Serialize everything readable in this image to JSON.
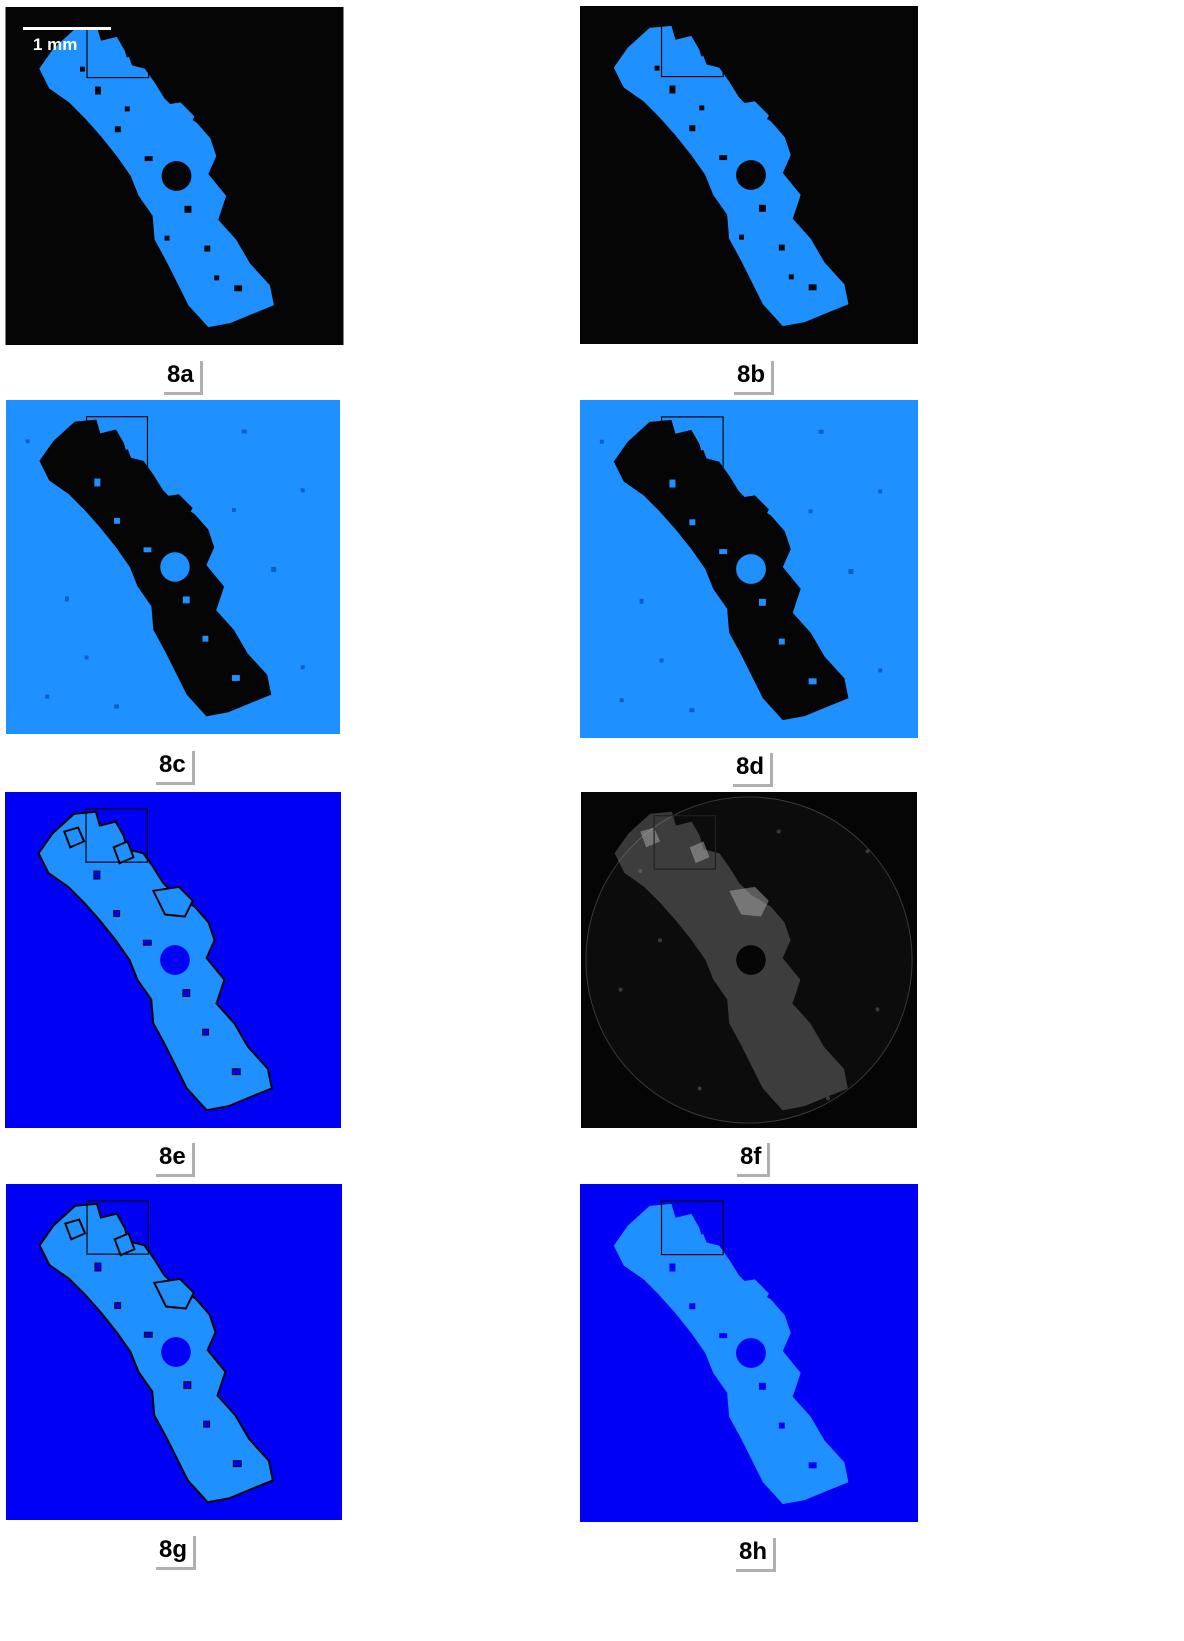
{
  "figure": {
    "scale_bar_label": "1 mm",
    "panels": [
      {
        "id": "8a",
        "caption": "8a",
        "style": "black-bg-blue-fg"
      },
      {
        "id": "8b",
        "caption": "8b",
        "style": "black-bg-blue-fg"
      },
      {
        "id": "8c",
        "caption": "8c",
        "style": "lightblue-bg-black-fg"
      },
      {
        "id": "8d",
        "caption": "8d",
        "style": "lightblue-bg-black-fg"
      },
      {
        "id": "8e",
        "caption": "8e",
        "style": "blue-bg-lightblue-fg-outlined"
      },
      {
        "id": "8f",
        "caption": "8f",
        "style": "grayscale-disc"
      },
      {
        "id": "8g",
        "caption": "8g",
        "style": "blue-bg-lightblue-fg-outlined"
      },
      {
        "id": "8h",
        "caption": "8h",
        "style": "blue-bg-lightblue-fg"
      }
    ],
    "colors": {
      "black": "#050505",
      "light_blue": "#1e90ff",
      "deep_blue": "#0000f5",
      "gray": "#9a9a9a"
    }
  }
}
